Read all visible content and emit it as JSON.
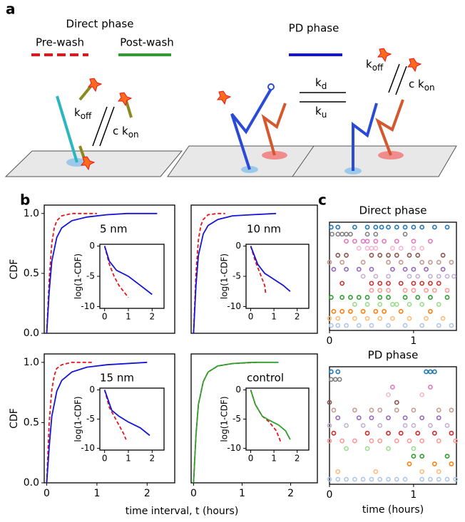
{
  "figure": {
    "letters": [
      "a",
      "b",
      "c"
    ],
    "diagram": {
      "direct_title": "Direct phase",
      "pre_wash": "Pre-wash",
      "post_wash": "Post-wash",
      "pd_title": "PD phase",
      "koff_left": {
        "main": "k",
        "sub": "off"
      },
      "ckon_left": {
        "main": "c k",
        "sub": "on"
      },
      "kd": {
        "main": "k",
        "sub": "d"
      },
      "ku": {
        "main": "k",
        "sub": "u"
      },
      "koff_right": {
        "main": "k",
        "sub": "off"
      },
      "ckon_right": {
        "main": "c k",
        "sub": "on"
      }
    },
    "b_xlabel": "time interval, t (hours)"
  },
  "chart_data": [
    {
      "type": "line",
      "annotation": "5 nm",
      "ylabel": "CDF",
      "xlim": [
        -0.05,
        2.55
      ],
      "ylim": [
        0,
        1.07
      ],
      "yticks": [
        {
          "value": 0,
          "label": "0.0"
        },
        {
          "value": 0.5,
          "label": "0.5"
        },
        {
          "value": 1,
          "label": "1.0"
        }
      ],
      "series": [
        {
          "color": "#e8141c",
          "dashed": true,
          "x": [
            0,
            0.05,
            0.1,
            0.15,
            0.2,
            0.3,
            0.5,
            0.8,
            1.0
          ],
          "values": [
            0,
            0.45,
            0.75,
            0.88,
            0.94,
            0.98,
            1.0,
            1.0,
            1.0
          ]
        },
        {
          "color": "#1515d6",
          "dashed": false,
          "x": [
            0,
            0.05,
            0.1,
            0.2,
            0.3,
            0.5,
            0.8,
            1.2,
            1.6,
            2.2
          ],
          "values": [
            0,
            0.35,
            0.6,
            0.8,
            0.88,
            0.94,
            0.97,
            0.99,
            1.0,
            1.0
          ]
        }
      ],
      "inset": {
        "ylabel": "log(1-CDF)",
        "xlim": [
          -0.2,
          2.5
        ],
        "ylim": [
          -10.3,
          0.3
        ],
        "xticks": [
          0,
          1,
          2
        ],
        "yticks": [
          0,
          -5,
          -10
        ],
        "series": [
          {
            "color": "#e8141c",
            "dashed": true,
            "x": [
              0,
              0.2,
              0.4,
              0.6,
              0.8,
              1.0
            ],
            "values": [
              0,
              -3,
              -5,
              -6.5,
              -7.5,
              -8.5
            ]
          },
          {
            "color": "#1515d6",
            "dashed": false,
            "x": [
              0,
              0.2,
              0.5,
              1.0,
              1.5,
              2.0
            ],
            "values": [
              0,
              -2.5,
              -4,
              -5,
              -6.5,
              -8
            ]
          }
        ]
      }
    },
    {
      "type": "line",
      "annotation": "10 nm",
      "xlim": [
        -0.05,
        2.55
      ],
      "ylim": [
        0,
        1.07
      ],
      "series": [
        {
          "color": "#e8141c",
          "dashed": true,
          "x": [
            0,
            0.05,
            0.1,
            0.15,
            0.2,
            0.3,
            0.5,
            0.65
          ],
          "values": [
            0,
            0.5,
            0.78,
            0.9,
            0.95,
            0.99,
            1.0,
            1.0
          ]
        },
        {
          "color": "#1515d6",
          "dashed": false,
          "x": [
            0,
            0.05,
            0.1,
            0.2,
            0.3,
            0.5,
            0.8,
            1.2,
            1.7
          ],
          "values": [
            0,
            0.4,
            0.65,
            0.83,
            0.9,
            0.95,
            0.98,
            0.99,
            1.0
          ]
        }
      ],
      "inset": {
        "ylabel": "log(1-CDF)",
        "xlim": [
          -0.2,
          2.5
        ],
        "ylim": [
          -10.3,
          0.3
        ],
        "xticks": [
          0,
          1,
          2
        ],
        "yticks": [
          0,
          -5,
          -10
        ],
        "series": [
          {
            "color": "#e8141c",
            "dashed": true,
            "x": [
              0,
              0.2,
              0.4,
              0.6,
              0.65
            ],
            "values": [
              0,
              -2.5,
              -4.5,
              -6.5,
              -8
            ]
          },
          {
            "color": "#1515d6",
            "dashed": false,
            "x": [
              0,
              0.3,
              0.6,
              1.0,
              1.4,
              1.7
            ],
            "values": [
              0,
              -3,
              -4.5,
              -5.5,
              -6.5,
              -7.5
            ]
          }
        ]
      }
    },
    {
      "type": "line",
      "annotation": "15 nm",
      "ylabel": "CDF",
      "xlim": [
        -0.05,
        2.55
      ],
      "ylim": [
        0,
        1.07
      ],
      "yticks": [
        {
          "value": 0,
          "label": "0.0"
        },
        {
          "value": 0.5,
          "label": "0.5"
        },
        {
          "value": 1,
          "label": "1.0"
        }
      ],
      "xticks": [
        0,
        1,
        2
      ],
      "series": [
        {
          "color": "#e8141c",
          "dashed": true,
          "x": [
            0,
            0.05,
            0.1,
            0.15,
            0.2,
            0.3,
            0.5,
            0.9
          ],
          "values": [
            0,
            0.5,
            0.77,
            0.89,
            0.95,
            0.98,
            1.0,
            1.0
          ]
        },
        {
          "color": "#1515d6",
          "dashed": false,
          "x": [
            0,
            0.05,
            0.1,
            0.2,
            0.3,
            0.5,
            0.8,
            1.2,
            2.0
          ],
          "values": [
            0,
            0.3,
            0.55,
            0.76,
            0.85,
            0.92,
            0.96,
            0.98,
            1.0
          ]
        }
      ],
      "inset": {
        "ylabel": "log(1-CDF)",
        "xlim": [
          -0.2,
          2.5
        ],
        "ylim": [
          -10.3,
          0.3
        ],
        "xticks": [
          0,
          1,
          2
        ],
        "yticks": [
          0,
          -5,
          -10
        ],
        "series": [
          {
            "color": "#e8141c",
            "dashed": true,
            "x": [
              0,
              0.2,
              0.4,
              0.6,
              0.8,
              0.9
            ],
            "values": [
              0,
              -3,
              -4.5,
              -6,
              -7.5,
              -8.5
            ]
          },
          {
            "color": "#1515d6",
            "dashed": false,
            "x": [
              0,
              0.3,
              0.6,
              1.0,
              1.5,
              1.9
            ],
            "values": [
              0,
              -3.5,
              -4.5,
              -5.5,
              -6.5,
              -7.8
            ]
          }
        ]
      }
    },
    {
      "type": "line",
      "annotation": "control",
      "xlim": [
        -0.05,
        2.55
      ],
      "ylim": [
        0,
        1.07
      ],
      "xticks": [
        0,
        1,
        2
      ],
      "series": [
        {
          "color": "#e8141c",
          "dashed": true,
          "x": [
            0,
            0.05,
            0.1,
            0.2,
            0.3,
            0.5,
            0.8,
            1.3
          ],
          "values": [
            0,
            0.4,
            0.65,
            0.84,
            0.92,
            0.97,
            0.99,
            1.0
          ]
        },
        {
          "color": "#2ca02c",
          "dashed": false,
          "x": [
            0,
            0.05,
            0.1,
            0.2,
            0.3,
            0.5,
            0.8,
            1.2,
            1.75
          ],
          "values": [
            0,
            0.4,
            0.65,
            0.84,
            0.92,
            0.97,
            0.99,
            1.0,
            1.0
          ]
        }
      ],
      "inset": {
        "ylabel": "log(1-CDF)",
        "xlim": [
          -0.2,
          2.5
        ],
        "ylim": [
          -10.3,
          0.3
        ],
        "xticks": [
          0,
          1,
          2
        ],
        "yticks": [
          0,
          -5,
          -10
        ],
        "series": [
          {
            "color": "#e8141c",
            "dashed": true,
            "x": [
              0,
              0.2,
              0.5,
              0.8,
              1.1,
              1.3
            ],
            "values": [
              0,
              -2.5,
              -4.5,
              -5.5,
              -7,
              -9
            ]
          },
          {
            "color": "#2ca02c",
            "dashed": false,
            "x": [
              0,
              0.2,
              0.5,
              0.8,
              1.2,
              1.5,
              1.7
            ],
            "values": [
              0,
              -2.5,
              -4.5,
              -5.2,
              -6,
              -7,
              -8.5
            ]
          }
        ]
      }
    },
    {
      "type": "raster",
      "title": "Direct phase",
      "xlim": [
        0,
        1.51
      ],
      "xticks": [
        0,
        1
      ],
      "rows": [
        {
          "color": "#1f77b4",
          "times": [
            0.02,
            0.1,
            0.3,
            0.45,
            0.55,
            0.62,
            0.7,
            0.8,
            0.9,
            1.0,
            1.1,
            1.25,
            1.4
          ]
        },
        {
          "color": "#7f7f7f",
          "times": [
            0.03,
            0.1,
            0.15,
            0.2,
            0.25,
            0.45,
            0.55,
            0.9
          ]
        },
        {
          "color": "#e377c2",
          "times": [
            0.2,
            0.3,
            0.4,
            0.45,
            0.55,
            0.65,
            0.8,
            1.0,
            1.2
          ]
        },
        {
          "color": "#f7b6d2",
          "times": [
            0.35,
            0.45,
            0.5,
            0.55,
            0.75,
            0.85,
            1.0,
            1.1
          ]
        },
        {
          "color": "#8c564b",
          "times": [
            0.1,
            0.2,
            0.5,
            0.6,
            0.7,
            0.8,
            0.95,
            1.05,
            1.35
          ]
        },
        {
          "color": "#c49c94",
          "times": [
            0.0,
            0.15,
            0.4,
            0.7,
            0.85,
            1.1,
            1.2,
            1.3,
            1.45
          ]
        },
        {
          "color": "#9467bd",
          "times": [
            0.05,
            0.2,
            0.35,
            0.5,
            0.75,
            0.9,
            1.0,
            1.15,
            1.35
          ]
        },
        {
          "color": "#c5b0d5",
          "times": [
            0.4,
            0.55,
            0.7,
            0.95,
            1.05,
            1.2,
            1.3,
            1.4,
            1.48
          ]
        },
        {
          "color": "#d62728",
          "times": [
            0.15,
            0.5,
            0.6,
            0.7,
            0.85,
            1.0,
            1.1,
            1.2,
            1.3
          ]
        },
        {
          "color": "#ff9896",
          "times": [
            0.5,
            0.6,
            0.7,
            0.9,
            1.0,
            1.15,
            1.25,
            1.4
          ]
        },
        {
          "color": "#2ca02c",
          "times": [
            0.02,
            0.15,
            0.25,
            0.35,
            0.45,
            0.6,
            0.7,
            0.9,
            1.05,
            1.2,
            1.4
          ]
        },
        {
          "color": "#98df8a",
          "times": [
            0.3,
            0.45,
            0.6,
            0.75,
            0.8,
            0.95,
            1.1,
            1.3
          ]
        },
        {
          "color": "#ff7f0e",
          "times": [
            0.05,
            0.15,
            0.25,
            0.4,
            0.55,
            0.65,
            0.85,
            1.2
          ]
        },
        {
          "color": "#ffbb78",
          "times": [
            0.0,
            0.1,
            0.3,
            0.45,
            0.6,
            0.75,
            0.95,
            1.15,
            1.35
          ]
        },
        {
          "color": "#aec7e8",
          "times": [
            0.02,
            0.1,
            0.2,
            0.35,
            0.5,
            0.7,
            0.9,
            1.1,
            1.3,
            1.45
          ]
        }
      ]
    },
    {
      "type": "raster",
      "title": "PD phase",
      "xlabel": "time (hours)",
      "xlim": [
        0,
        1.51
      ],
      "xticks": [
        0,
        1
      ],
      "rows": [
        {
          "color": "#1f77b4",
          "times": [
            0.02,
            0.1,
            1.15,
            1.2,
            1.25
          ]
        },
        {
          "color": "#7f7f7f",
          "times": [
            0.02,
            0.07,
            0.12
          ]
        },
        {
          "color": "#e377c2",
          "times": [
            0.75,
            1.2
          ]
        },
        {
          "color": "#f7b6d2",
          "times": [
            0.7,
            1.1
          ]
        },
        {
          "color": "#8c564b",
          "times": [
            0.0,
            0.8
          ]
        },
        {
          "color": "#c49c94",
          "times": [
            0.05,
            0.3,
            0.5,
            0.6,
            0.8,
            1.0,
            1.3,
            1.45
          ]
        },
        {
          "color": "#9467bd",
          "times": [
            0.1,
            0.35,
            0.5,
            0.7,
            0.9,
            1.1,
            1.3
          ]
        },
        {
          "color": "#c5b0d5",
          "times": [
            0.0,
            0.2,
            0.4,
            0.6,
            0.9,
            1.0,
            1.2,
            1.4
          ]
        },
        {
          "color": "#d62728",
          "times": [
            0.05,
            0.45,
            0.7,
            0.85,
            1.05,
            1.25,
            1.45
          ]
        },
        {
          "color": "#ff9896",
          "times": [
            0.0,
            0.15,
            0.3,
            0.5,
            0.6,
            0.8,
            0.95,
            1.1,
            1.3,
            1.5
          ]
        },
        {
          "color": "#98df8a",
          "times": [
            0.2,
            0.45,
            0.7,
            1.0
          ]
        },
        {
          "color": "#2ca02c",
          "times": [
            1.0,
            1.1,
            1.4
          ]
        },
        {
          "color": "#ff7f0e",
          "times": [
            0.95,
            1.25,
            1.45
          ]
        },
        {
          "color": "#ffbb78",
          "times": [
            0.1,
            0.55,
            1.1,
            1.3
          ]
        },
        {
          "color": "#aec7e8",
          "times": [
            0.0,
            0.1,
            0.2,
            0.3,
            0.4,
            0.5,
            0.6,
            0.7,
            0.8,
            0.9,
            1.1,
            1.2,
            1.3,
            1.4,
            1.5
          ]
        }
      ]
    }
  ]
}
